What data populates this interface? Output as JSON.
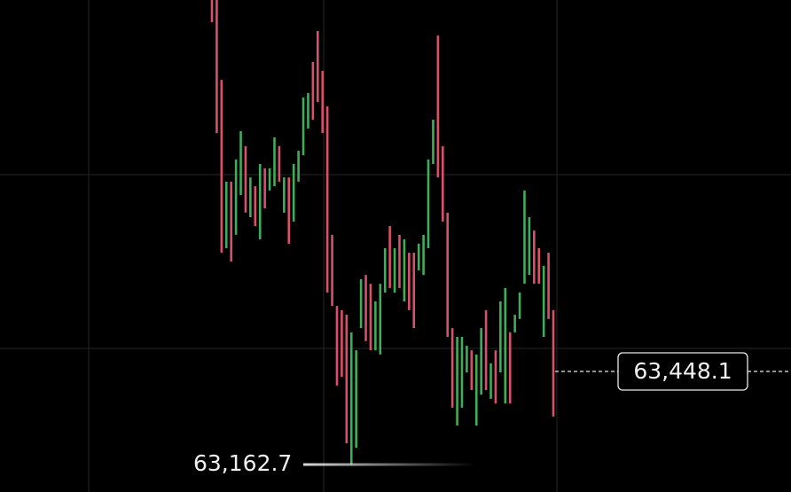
{
  "chart_data": {
    "type": "candlestick",
    "ylim": [
      63078.5,
      64587.0
    ],
    "up_color": "#3fae5a",
    "down_color": "#d9506a",
    "candles": [
      {
        "high": 64587,
        "low": 64519,
        "rising": false
      },
      {
        "high": 64587,
        "low": 64179,
        "rising": false
      },
      {
        "high": 64342,
        "low": 63812,
        "rising": false
      },
      {
        "high": 64030,
        "low": 63826,
        "rising": true
      },
      {
        "high": 64030,
        "low": 63785,
        "rising": false
      },
      {
        "high": 64098,
        "low": 63867,
        "rising": true
      },
      {
        "high": 64185,
        "low": 63989,
        "rising": true
      },
      {
        "high": 64139,
        "low": 63935,
        "rising": false
      },
      {
        "high": 64043,
        "low": 63921,
        "rising": true
      },
      {
        "high": 64016,
        "low": 63894,
        "rising": false
      },
      {
        "high": 64084,
        "low": 63853,
        "rising": true
      },
      {
        "high": 64071,
        "low": 63948,
        "rising": false
      },
      {
        "high": 64071,
        "low": 64003,
        "rising": true
      },
      {
        "high": 64166,
        "low": 64016,
        "rising": true
      },
      {
        "high": 64139,
        "low": 64030,
        "rising": false
      },
      {
        "high": 64043,
        "low": 63935,
        "rising": true
      },
      {
        "high": 64043,
        "low": 63840,
        "rising": false
      },
      {
        "high": 64084,
        "low": 63908,
        "rising": true
      },
      {
        "high": 64125,
        "low": 64030,
        "rising": true
      },
      {
        "high": 64288,
        "low": 64111,
        "rising": true
      },
      {
        "high": 64302,
        "low": 64193,
        "rising": true
      },
      {
        "high": 64397,
        "low": 64220,
        "rising": false
      },
      {
        "high": 64492,
        "low": 64274,
        "rising": false
      },
      {
        "high": 64370,
        "low": 64179,
        "rising": false
      },
      {
        "high": 64261,
        "low": 63690,
        "rising": false
      },
      {
        "high": 63867,
        "low": 63649,
        "rising": false
      },
      {
        "high": 63649,
        "low": 63405,
        "rising": false
      },
      {
        "high": 63636,
        "low": 63432,
        "rising": false
      },
      {
        "high": 63622,
        "low": 63228,
        "rising": false
      },
      {
        "high": 63568,
        "low": 63163,
        "rising": true
      },
      {
        "high": 63513,
        "low": 63214,
        "rising": true
      },
      {
        "high": 63731,
        "low": 63581,
        "rising": true
      },
      {
        "high": 63744,
        "low": 63541,
        "rising": false
      },
      {
        "high": 63717,
        "low": 63513,
        "rising": false
      },
      {
        "high": 63663,
        "low": 63513,
        "rising": true
      },
      {
        "high": 63717,
        "low": 63500,
        "rising": true
      },
      {
        "high": 63826,
        "low": 63690,
        "rising": true
      },
      {
        "high": 63894,
        "low": 63704,
        "rising": false
      },
      {
        "high": 63826,
        "low": 63690,
        "rising": true
      },
      {
        "high": 63867,
        "low": 63704,
        "rising": false
      },
      {
        "high": 63853,
        "low": 63663,
        "rising": true
      },
      {
        "high": 63812,
        "low": 63636,
        "rising": false
      },
      {
        "high": 63812,
        "low": 63581,
        "rising": false
      },
      {
        "high": 63840,
        "low": 63758,
        "rising": true
      },
      {
        "high": 63867,
        "low": 63744,
        "rising": true
      },
      {
        "high": 64098,
        "low": 63826,
        "rising": true
      },
      {
        "high": 64220,
        "low": 64084,
        "rising": true
      },
      {
        "high": 64478,
        "low": 64043,
        "rising": false
      },
      {
        "high": 64139,
        "low": 63908,
        "rising": false
      },
      {
        "high": 63935,
        "low": 63554,
        "rising": false
      },
      {
        "high": 63581,
        "low": 63337,
        "rising": false
      },
      {
        "high": 63554,
        "low": 63282,
        "rising": true
      },
      {
        "high": 63554,
        "low": 63337,
        "rising": true
      },
      {
        "high": 63527,
        "low": 63445,
        "rising": true
      },
      {
        "high": 63513,
        "low": 63391,
        "rising": false
      },
      {
        "high": 63500,
        "low": 63282,
        "rising": true
      },
      {
        "high": 63581,
        "low": 63377,
        "rising": true
      },
      {
        "high": 63636,
        "low": 63391,
        "rising": false
      },
      {
        "high": 63473,
        "low": 63364,
        "rising": true
      },
      {
        "high": 63513,
        "low": 63350,
        "rising": false
      },
      {
        "high": 63663,
        "low": 63445,
        "rising": true
      },
      {
        "high": 63704,
        "low": 63350,
        "rising": true
      },
      {
        "high": 63568,
        "low": 63350,
        "rising": false
      },
      {
        "high": 63622,
        "low": 63568,
        "rising": true
      },
      {
        "high": 63690,
        "low": 63609,
        "rising": true
      },
      {
        "high": 64003,
        "low": 63717,
        "rising": true
      },
      {
        "high": 63921,
        "low": 63744,
        "rising": true
      },
      {
        "high": 63880,
        "low": 63717,
        "rising": false
      },
      {
        "high": 63826,
        "low": 63717,
        "rising": false
      },
      {
        "high": 63772,
        "low": 63554,
        "rising": true
      },
      {
        "high": 63812,
        "low": 63609,
        "rising": false
      },
      {
        "high": 63636,
        "low": 63310,
        "rising": false
      }
    ],
    "low_marker": {
      "value": 63162.7,
      "label": "63,162.7"
    },
    "last_price": {
      "value": 63448.1,
      "label": "63,448.1"
    }
  }
}
